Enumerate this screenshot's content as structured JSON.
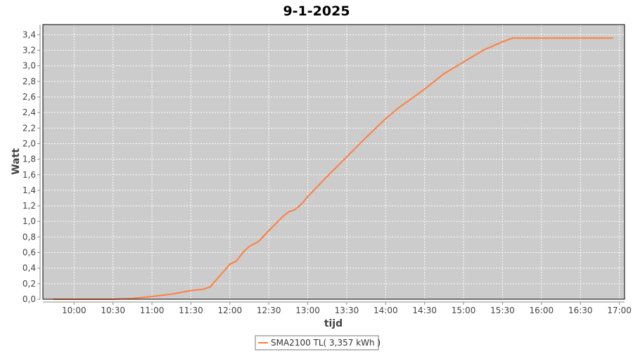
{
  "chart_data": {
    "type": "line",
    "title": "9-1-2025",
    "xlabel": "tijd",
    "ylabel": "Watt",
    "xlim": [
      "09:36",
      "17:04"
    ],
    "ylim": [
      0,
      3.53
    ],
    "grid": true,
    "legend_position": "bottom",
    "colors": {
      "plot_background": "#cccccc",
      "grid": "#ffffff",
      "line": "#ff7f3f"
    },
    "x_ticks": [
      "10:00",
      "10:30",
      "11:00",
      "11:30",
      "12:00",
      "12:30",
      "13:00",
      "13:30",
      "14:00",
      "14:30",
      "15:00",
      "15:30",
      "16:00",
      "16:30",
      "17:00"
    ],
    "y_ticks": [
      "0,0",
      "0,2",
      "0,4",
      "0,6",
      "0,8",
      "1,0",
      "1,2",
      "1,4",
      "1,6",
      "1,8",
      "2,0",
      "2,2",
      "2,4",
      "2,6",
      "2,8",
      "3,0",
      "3,2",
      "3,4"
    ],
    "series": [
      {
        "name": "SMA2100 TL( 3,357 kWh )",
        "x": [
          "09:44",
          "10:30",
          "10:45",
          "11:00",
          "11:15",
          "11:30",
          "11:40",
          "11:45",
          "12:00",
          "12:05",
          "12:10",
          "12:15",
          "12:22",
          "12:30",
          "12:40",
          "12:45",
          "12:50",
          "12:55",
          "13:00",
          "13:15",
          "13:30",
          "13:45",
          "14:00",
          "14:10",
          "14:30",
          "14:45",
          "15:00",
          "15:15",
          "15:30",
          "15:38",
          "16:55"
        ],
        "y": [
          0,
          0,
          0.01,
          0.035,
          0.065,
          0.11,
          0.13,
          0.16,
          0.45,
          0.49,
          0.6,
          0.68,
          0.74,
          0.88,
          1.05,
          1.12,
          1.15,
          1.22,
          1.32,
          1.58,
          1.83,
          2.08,
          2.32,
          2.46,
          2.7,
          2.9,
          3.05,
          3.2,
          3.31,
          3.357,
          3.357
        ]
      }
    ]
  }
}
